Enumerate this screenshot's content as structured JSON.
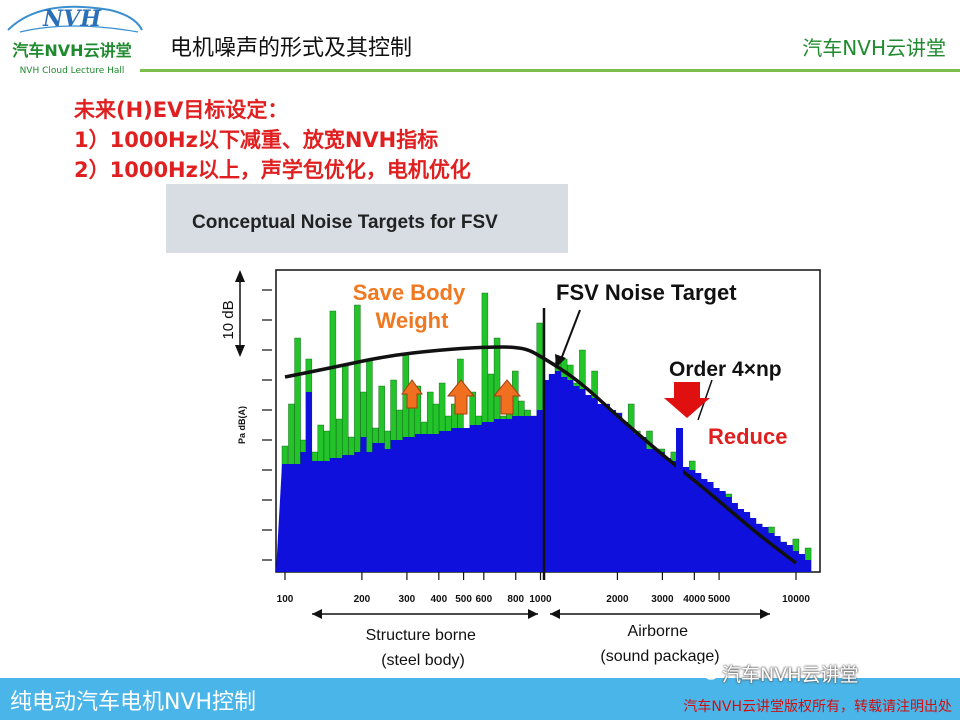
{
  "header": {
    "logo_main": "NVH",
    "logo_cn": "汽车NVH云讲堂",
    "logo_en": "NVH Cloud Lecture Hall",
    "title": "电机噪声的形式及其控制",
    "brand_right": "汽车NVH云讲堂"
  },
  "targets": {
    "heading": "未来(H)EV目标设定：",
    "item1": "1）1000Hz以下减重、放宽NVH指标",
    "item2": "2）1000Hz以上，声学包优化，电机优化"
  },
  "footer": {
    "left": "纯电动汽车电机NVH控制",
    "right": "汽车NVH云讲堂版权所有，转载请注明出处",
    "watermark": "汽车NVH云讲堂"
  },
  "colors": {
    "accent_red": "#e02020",
    "brand_green": "#1f8a2e",
    "footer_blue": "#4ab5e8",
    "bar_green": "#22c42a",
    "bar_blue": "#1010dd",
    "arrow_orange": "#f07020"
  },
  "chart_data": {
    "type": "bar",
    "title": "Conceptual Noise Targets for FSV",
    "ylabel": "Pa dB(A)",
    "scale_label": "10 dB",
    "x_scale": "log",
    "xlim": [
      100,
      12000
    ],
    "ylim": [
      0,
      100
    ],
    "x_ticks": [
      100,
      200,
      300,
      400,
      500,
      600,
      800,
      1000,
      2000,
      3000,
      4000,
      5000,
      10000
    ],
    "annotations": {
      "save_body_weight": "Save Body\nWeight",
      "fsv_target": "FSV Noise Target",
      "order": "Order 4×np",
      "reduce": "Reduce",
      "structure_borne": "Structure borne\n(steel body)",
      "airborne": "Airborne\n(sound package)"
    },
    "target_curve": {
      "name": "FSV Noise Target",
      "x": [
        100,
        150,
        250,
        400,
        600,
        850,
        1000,
        1400,
        2000,
        3000,
        4500,
        7000,
        10000
      ],
      "y": [
        65,
        68,
        72,
        74,
        75,
        75,
        72,
        64,
        52,
        39,
        27,
        13,
        3
      ]
    },
    "order_line": {
      "x": 3500,
      "value": 48
    },
    "series": [
      {
        "name": "green",
        "x": [
          100,
          106,
          112,
          118,
          124,
          131,
          138,
          146,
          154,
          163,
          172,
          182,
          192,
          203,
          214,
          226,
          239,
          252,
          266,
          281,
          297,
          314,
          331,
          350,
          370,
          390,
          412,
          436,
          460,
          486,
          514,
          543,
          573,
          606,
          640,
          676,
          714,
          754,
          797,
          842,
          890,
          940,
          993,
          1049,
          1108,
          1171,
          1237,
          1307,
          1381,
          1459,
          1541,
          1628,
          1720,
          1817,
          1920,
          2029,
          2143,
          2264,
          2392,
          2527,
          2670,
          2821,
          2980,
          3148,
          3326,
          3514,
          3713,
          3923,
          4144,
          4379,
          4626,
          4888,
          5164,
          5456,
          5764,
          6090,
          6434,
          6798,
          7182,
          7588,
          8017,
          8470,
          8949,
          9454,
          9988,
          10553,
          11150
        ],
        "values": [
          42,
          56,
          78,
          44,
          71,
          40,
          49,
          47,
          87,
          51,
          69,
          45,
          89,
          60,
          71,
          48,
          62,
          47,
          64,
          54,
          73,
          59,
          62,
          50,
          60,
          56,
          63,
          52,
          56,
          71,
          44,
          60,
          52,
          93,
          66,
          78,
          52,
          59,
          67,
          57,
          54,
          52,
          83,
          46,
          61,
          70,
          71,
          69,
          63,
          74,
          55,
          67,
          48,
          56,
          51,
          53,
          49,
          56,
          47,
          34,
          47,
          41,
          41,
          33,
          40,
          31,
          30,
          37,
          29,
          20,
          28,
          19,
          23,
          26,
          16,
          16,
          18,
          11,
          16,
          10,
          15,
          7,
          10,
          7,
          11,
          5,
          8
        ]
      },
      {
        "name": "blue",
        "x": [
          100,
          106,
          112,
          118,
          124,
          131,
          138,
          146,
          154,
          163,
          172,
          182,
          192,
          203,
          214,
          226,
          239,
          252,
          266,
          281,
          297,
          314,
          331,
          350,
          370,
          390,
          412,
          436,
          460,
          486,
          514,
          543,
          573,
          606,
          640,
          676,
          714,
          754,
          797,
          842,
          890,
          940,
          993,
          1049,
          1108,
          1171,
          1237,
          1307,
          1381,
          1459,
          1541,
          1628,
          1720,
          1817,
          1920,
          2029,
          2143,
          2264,
          2392,
          2527,
          2670,
          2821,
          2980,
          3148,
          3326,
          3514,
          3713,
          3923,
          4144,
          4379,
          4626,
          4888,
          5164,
          5456,
          5764,
          6090,
          6434,
          6798,
          7182,
          7588,
          8017,
          8470,
          8949,
          9454,
          9988,
          10553,
          11150
        ],
        "values": [
          36,
          36,
          36,
          40,
          60,
          37,
          37,
          37,
          38,
          38,
          39,
          39,
          40,
          45,
          40,
          43,
          43,
          41,
          44,
          44,
          45,
          45,
          46,
          46,
          46,
          46,
          47,
          47,
          48,
          48,
          48,
          49,
          49,
          50,
          50,
          51,
          51,
          51,
          52,
          52,
          52,
          52,
          54,
          64,
          66,
          67,
          65,
          64,
          62,
          61,
          59,
          58,
          56,
          56,
          54,
          53,
          50,
          48,
          46,
          45,
          41,
          41,
          40,
          38,
          37,
          48,
          35,
          34,
          33,
          31,
          30,
          28,
          27,
          25,
          23,
          21,
          20,
          18,
          16,
          15,
          13,
          12,
          10,
          9,
          7,
          6,
          4
        ]
      }
    ]
  }
}
